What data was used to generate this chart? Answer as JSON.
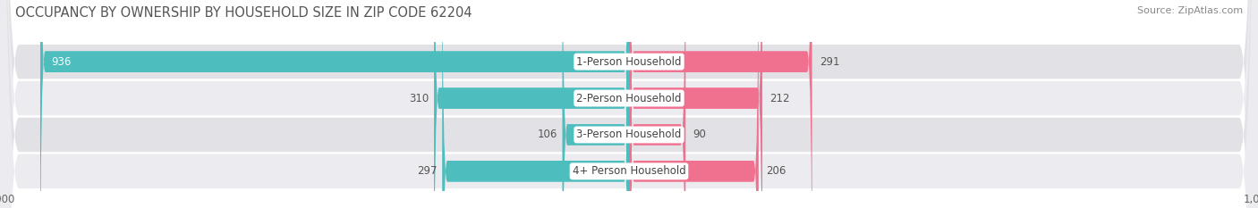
{
  "title": "OCCUPANCY BY OWNERSHIP BY HOUSEHOLD SIZE IN ZIP CODE 62204",
  "source": "Source: ZipAtlas.com",
  "categories": [
    "1-Person Household",
    "2-Person Household",
    "3-Person Household",
    "4+ Person Household"
  ],
  "owner_values": [
    936,
    310,
    106,
    297
  ],
  "renter_values": [
    291,
    212,
    90,
    206
  ],
  "owner_color": "#4DBDBD",
  "renter_color": "#F07090",
  "row_bg_color_dark": "#E2E2E6",
  "row_bg_color_light": "#EBEBF0",
  "title_fontsize": 10.5,
  "source_fontsize": 8,
  "tick_label_fontsize": 8.5,
  "bar_label_fontsize": 8.5,
  "cat_label_fontsize": 8.5,
  "legend_fontsize": 8.5,
  "axis_max": 1000,
  "owner_label_white_threshold": 500
}
